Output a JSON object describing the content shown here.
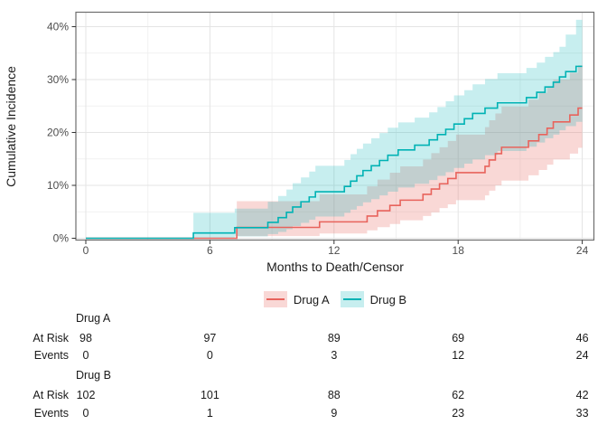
{
  "chart_data": {
    "type": "line",
    "subtype": "step-cumulative-incidence-with-ci-bands",
    "title": "",
    "xlabel": "Months to Death/Censor",
    "ylabel": "Cumulative Incidence",
    "xlim": [
      0,
      24
    ],
    "ylim": [
      0,
      42.7
    ],
    "x_ticks": [
      0,
      6,
      12,
      18,
      24
    ],
    "x_tick_labels": [
      "0",
      "6",
      "12",
      "18",
      "24"
    ],
    "y_ticks": [
      0,
      10,
      20,
      30,
      40
    ],
    "y_tick_labels": [
      "0%",
      "10%",
      "20%",
      "30%",
      "40%"
    ],
    "x_minor_ticks": [
      3,
      9,
      15,
      21
    ],
    "y_minor_ticks": [
      5,
      15,
      25,
      35
    ],
    "grid": true,
    "legend_position": "bottom",
    "series": [
      {
        "name": "Drug A",
        "color": "#e8635c",
        "band_fill": "rgba(232,99,92,0.25)",
        "steps_format": [
          "months",
          "incidence_pct",
          "ci_lower_pct",
          "ci_upper_pct"
        ],
        "steps": [
          [
            0,
            0,
            0,
            0
          ],
          [
            7.3,
            2.05,
            0.4,
            7.0
          ],
          [
            11.3,
            3.1,
            0.9,
            8.3
          ],
          [
            13.6,
            4.2,
            1.5,
            9.8
          ],
          [
            14.1,
            5.2,
            2.1,
            11.1
          ],
          [
            14.7,
            6.2,
            2.7,
            12.4
          ],
          [
            15.2,
            7.2,
            3.4,
            13.6
          ],
          [
            16.3,
            8.3,
            4.2,
            14.9
          ],
          [
            16.7,
            9.3,
            4.9,
            16.1
          ],
          [
            17.1,
            10.3,
            5.7,
            17.2
          ],
          [
            17.5,
            11.3,
            6.4,
            18.4
          ],
          [
            17.9,
            12.4,
            7.2,
            19.6
          ],
          [
            19.3,
            13.6,
            8.1,
            21.0
          ],
          [
            19.5,
            14.8,
            9.0,
            22.3
          ],
          [
            19.8,
            16.0,
            10.0,
            23.6
          ],
          [
            20.1,
            17.2,
            10.9,
            24.9
          ],
          [
            21.4,
            18.4,
            11.9,
            26.2
          ],
          [
            21.9,
            19.6,
            12.9,
            27.5
          ],
          [
            22.3,
            20.8,
            13.9,
            28.7
          ],
          [
            22.6,
            22.0,
            14.9,
            30.0
          ],
          [
            23.4,
            23.3,
            16.0,
            31.3
          ],
          [
            23.8,
            24.6,
            17.1,
            32.7
          ],
          [
            24,
            24.6,
            17.1,
            32.7
          ]
        ]
      },
      {
        "name": "Drug B",
        "color": "#00b2b4",
        "band_fill": "rgba(0,178,180,0.22)",
        "steps_format": [
          "months",
          "incidence_pct",
          "ci_lower_pct",
          "ci_upper_pct"
        ],
        "steps": [
          [
            0,
            0,
            0,
            0
          ],
          [
            5.2,
            1.0,
            0,
            4.8
          ],
          [
            7.2,
            2.0,
            0.35,
            5.6
          ],
          [
            8.8,
            3.0,
            0.8,
            6.9
          ],
          [
            9.3,
            3.9,
            1.2,
            8.0
          ],
          [
            9.7,
            4.9,
            1.7,
            9.2
          ],
          [
            10.0,
            5.9,
            2.3,
            10.4
          ],
          [
            10.4,
            6.9,
            2.9,
            11.5
          ],
          [
            10.8,
            7.8,
            3.5,
            12.6
          ],
          [
            11.1,
            8.8,
            4.1,
            13.7
          ],
          [
            12.5,
            9.8,
            4.8,
            14.8
          ],
          [
            12.8,
            10.8,
            5.4,
            15.9
          ],
          [
            13.1,
            11.8,
            6.1,
            16.9
          ],
          [
            13.4,
            12.8,
            6.8,
            17.9
          ],
          [
            13.8,
            13.7,
            7.4,
            18.9
          ],
          [
            14.2,
            14.7,
            8.1,
            19.9
          ],
          [
            14.6,
            15.7,
            8.8,
            20.9
          ],
          [
            15.1,
            16.7,
            9.6,
            21.9
          ],
          [
            15.9,
            17.6,
            10.3,
            22.8
          ],
          [
            16.6,
            18.6,
            11.0,
            23.8
          ],
          [
            17.0,
            19.6,
            11.8,
            24.8
          ],
          [
            17.4,
            20.6,
            12.5,
            25.9
          ],
          [
            17.8,
            21.6,
            13.3,
            27.0
          ],
          [
            18.3,
            22.6,
            14.1,
            28.0
          ],
          [
            18.7,
            23.6,
            14.9,
            29.1
          ],
          [
            19.3,
            24.6,
            15.7,
            30.1
          ],
          [
            19.9,
            25.6,
            16.5,
            31.2
          ],
          [
            21.3,
            26.6,
            17.3,
            32.2
          ],
          [
            21.8,
            27.6,
            18.1,
            33.2
          ],
          [
            22.2,
            28.6,
            18.9,
            34.3
          ],
          [
            22.6,
            29.5,
            19.6,
            35.2
          ],
          [
            22.9,
            30.5,
            20.4,
            36.2
          ],
          [
            23.2,
            31.5,
            21.2,
            38.5
          ],
          [
            23.7,
            32.5,
            22.0,
            41.3
          ],
          [
            24,
            32.5,
            22.0,
            41.3
          ]
        ]
      }
    ]
  },
  "legend": {
    "items": [
      {
        "label": "Drug A"
      },
      {
        "label": "Drug B"
      }
    ]
  },
  "risk_table": {
    "time_points": [
      0,
      6,
      12,
      18,
      24
    ],
    "row_labels": {
      "at_risk": "At Risk",
      "events": "Events"
    },
    "groups": [
      {
        "name": "Drug A",
        "at_risk": [
          98,
          97,
          89,
          69,
          46
        ],
        "events": [
          0,
          0,
          3,
          12,
          24
        ]
      },
      {
        "name": "Drug B",
        "at_risk": [
          102,
          101,
          88,
          62,
          42
        ],
        "events": [
          0,
          1,
          9,
          23,
          33
        ]
      }
    ]
  },
  "style": {
    "panel_border_color": "#6e6e6e",
    "grid_major_color": "#e4e4e4",
    "grid_minor_color": "#f1f1f1",
    "tick_color": "#333333",
    "tick_label_color": "#4d4d4d",
    "background": "#ffffff"
  }
}
